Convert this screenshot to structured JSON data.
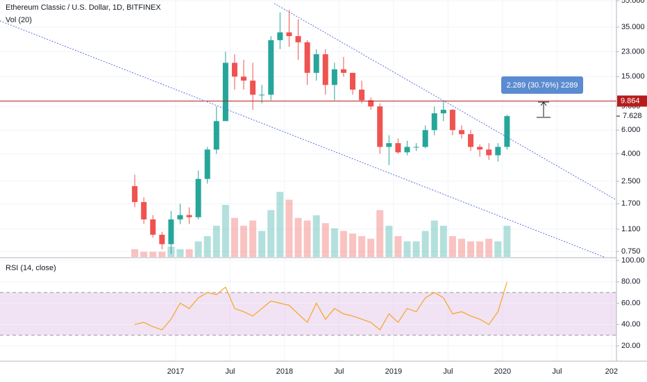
{
  "chart_data": [
    {
      "type": "candlestick",
      "title": "Ethereum Classic / U.S. Dollar, 1D, BITFINEX",
      "volume_title": "Vol (20)",
      "x": [
        "2016-08",
        "2016-09",
        "2016-10",
        "2016-11",
        "2016-12",
        "2017-01",
        "2017-02",
        "2017-03",
        "2017-04",
        "2017-05",
        "2017-06",
        "2017-07",
        "2017-08",
        "2017-09",
        "2017-10",
        "2017-11",
        "2017-12",
        "2018-01",
        "2018-02",
        "2018-03",
        "2018-04",
        "2018-05",
        "2018-06",
        "2018-07",
        "2018-08",
        "2018-09",
        "2018-10",
        "2018-11",
        "2018-12",
        "2019-01",
        "2019-02",
        "2019-03",
        "2019-04",
        "2019-05",
        "2019-06",
        "2019-07",
        "2019-08",
        "2019-09",
        "2019-10",
        "2019-11",
        "2019-12",
        "2020-01"
      ],
      "open": [
        2.3,
        1.75,
        1.3,
        1.0,
        0.85,
        1.3,
        1.4,
        1.35,
        2.6,
        4.3,
        7.0,
        19,
        15,
        14,
        11,
        11,
        28,
        32,
        30,
        27,
        16,
        22,
        13,
        17,
        16,
        12,
        10,
        9,
        4.5,
        4.8,
        4.1,
        4.5,
        4.5,
        6.0,
        8.0,
        8.5,
        6.0,
        5.6,
        4.5,
        4.3,
        3.9,
        4.5
      ],
      "high": [
        2.8,
        1.9,
        1.4,
        1.05,
        1.5,
        1.7,
        1.6,
        3.0,
        4.5,
        9.0,
        23,
        22,
        20,
        19,
        13,
        30,
        45,
        47,
        40,
        28,
        24,
        24,
        19,
        21,
        16,
        14,
        10.5,
        9.5,
        5.5,
        5.2,
        5.0,
        4.8,
        6.5,
        9.0,
        9.8,
        8.6,
        6.5,
        6.0,
        4.7,
        4.8,
        4.8,
        7.8
      ],
      "low": [
        1.6,
        1.2,
        0.95,
        0.78,
        0.72,
        1.2,
        1.2,
        1.3,
        2.4,
        4.0,
        7.0,
        12,
        12,
        8.5,
        9.5,
        10,
        24,
        25,
        20,
        13,
        14,
        11,
        10,
        15,
        11,
        9.5,
        8.5,
        4.0,
        3.3,
        4.0,
        3.9,
        4.2,
        4.4,
        5.5,
        7.0,
        5.5,
        5.2,
        4.2,
        3.8,
        3.6,
        3.5,
        4.3
      ],
      "close": [
        1.75,
        1.3,
        1.0,
        0.85,
        1.3,
        1.4,
        1.35,
        2.6,
        4.3,
        7.0,
        19,
        15,
        14,
        11,
        11,
        28,
        32,
        30,
        27,
        16,
        22,
        13,
        17,
        16,
        12,
        10,
        9,
        4.5,
        4.8,
        4.1,
        4.5,
        4.5,
        6.0,
        8.0,
        8.5,
        6.0,
        5.6,
        4.5,
        4.3,
        3.9,
        4.5,
        7.628
      ],
      "volume": [
        3,
        2,
        2,
        2,
        4,
        3,
        3,
        6,
        8,
        12,
        20,
        15,
        12,
        14,
        10,
        18,
        25,
        22,
        15,
        14,
        16,
        13,
        11,
        10,
        9,
        8,
        7,
        18,
        12,
        8,
        6,
        6,
        10,
        14,
        12,
        8,
        7,
        6,
        6,
        7,
        6,
        12
      ],
      "vlim": [
        0,
        40
      ],
      "up_color": "#26a69a",
      "down_color": "#ef5350",
      "log_scale": true,
      "ylim": [
        0.683,
        55.7
      ],
      "yticks": [
        {
          "value": 0.75,
          "label": "0.750"
        },
        {
          "value": 1.1,
          "label": "1.100"
        },
        {
          "value": 1.7,
          "label": "1.700"
        },
        {
          "value": 2.5,
          "label": "2.500"
        },
        {
          "value": 4,
          "label": "4.000"
        },
        {
          "value": 6,
          "label": "6.000"
        },
        {
          "value": 9,
          "label": "9.000"
        },
        {
          "value": 15,
          "label": "15.000"
        },
        {
          "value": 23,
          "label": "23.000"
        },
        {
          "value": 35,
          "label": "35.000"
        },
        {
          "value": 55,
          "label": "55.000"
        }
      ],
      "xticks": [
        {
          "value": "2017-01",
          "label": "2017"
        },
        {
          "value": "2017-07",
          "label": "Jul"
        },
        {
          "value": "2018-01",
          "label": "2018"
        },
        {
          "value": "2018-07",
          "label": "Jul"
        },
        {
          "value": "2019-01",
          "label": "2019"
        },
        {
          "value": "2019-07",
          "label": "Jul"
        },
        {
          "value": "2020-01",
          "label": "2020"
        },
        {
          "value": "2020-07",
          "label": "Jul"
        },
        {
          "value": "2021-01",
          "label": "202"
        }
      ],
      "horizontal_line": {
        "value": 9.864,
        "label": "9.864",
        "color": "#b71c1c"
      },
      "last_price": {
        "value": 7.628,
        "label": "7.628"
      },
      "annotation": "2.289 (30.76%) 2289"
    },
    {
      "type": "line",
      "title": "RSI (14, close)",
      "color": "#f5a623",
      "values": [
        40,
        42,
        38,
        35,
        45,
        60,
        55,
        65,
        70,
        68,
        75,
        55,
        52,
        48,
        55,
        62,
        60,
        58,
        50,
        42,
        60,
        45,
        55,
        50,
        48,
        45,
        42,
        35,
        50,
        42,
        55,
        52,
        65,
        70,
        65,
        50,
        52,
        48,
        45,
        40,
        52,
        80
      ],
      "ylim": [
        5.7,
        101.95
      ],
      "yticks": [
        {
          "value": 20,
          "label": "20.00"
        },
        {
          "value": 40,
          "label": "40.00"
        },
        {
          "value": 60,
          "label": "60.00"
        },
        {
          "value": 80,
          "label": "80.00"
        },
        {
          "value": 100,
          "label": "100.00"
        }
      ],
      "band": [
        30,
        70
      ],
      "band_color": "#e1bee7"
    }
  ]
}
